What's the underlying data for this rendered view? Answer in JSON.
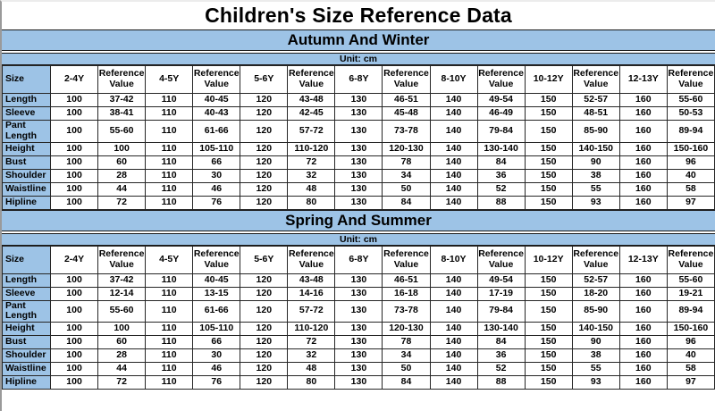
{
  "title": "Children's Size Reference Data",
  "colors": {
    "band_blue": "#9dc3e6",
    "border": "#262626",
    "text": "#000000",
    "background": "#ffffff"
  },
  "sections": [
    {
      "title": "Autumn And Winter",
      "unit_label": "Unit: cm",
      "header": [
        "Size",
        "2-4Y",
        "Reference Value",
        "4-5Y",
        "Reference Value",
        "5-6Y",
        "Reference Value",
        "6-8Y",
        "Reference Value",
        "8-10Y",
        "Reference Value",
        "10-12Y",
        "Reference Value",
        "12-13Y",
        "Reference Value"
      ],
      "rows": [
        {
          "label": "Length",
          "values": [
            "100",
            "37-42",
            "110",
            "40-45",
            "120",
            "43-48",
            "130",
            "46-51",
            "140",
            "49-54",
            "150",
            "52-57",
            "160",
            "55-60"
          ]
        },
        {
          "label": "Sleeve",
          "values": [
            "100",
            "38-41",
            "110",
            "40-43",
            "120",
            "42-45",
            "130",
            "45-48",
            "140",
            "46-49",
            "150",
            "48-51",
            "160",
            "50-53"
          ]
        },
        {
          "label": "Pant Length",
          "values": [
            "100",
            "55-60",
            "110",
            "61-66",
            "120",
            "57-72",
            "130",
            "73-78",
            "140",
            "79-84",
            "150",
            "85-90",
            "160",
            "89-94"
          ]
        },
        {
          "label": "Height",
          "values": [
            "100",
            "100",
            "110",
            "105-110",
            "120",
            "110-120",
            "130",
            "120-130",
            "140",
            "130-140",
            "150",
            "140-150",
            "160",
            "150-160"
          ]
        },
        {
          "label": "Bust",
          "values": [
            "100",
            "60",
            "110",
            "66",
            "120",
            "72",
            "130",
            "78",
            "140",
            "84",
            "150",
            "90",
            "160",
            "96"
          ]
        },
        {
          "label": "Shoulder",
          "values": [
            "100",
            "28",
            "110",
            "30",
            "120",
            "32",
            "130",
            "34",
            "140",
            "36",
            "150",
            "38",
            "160",
            "40"
          ]
        },
        {
          "label": "Waistline",
          "values": [
            "100",
            "44",
            "110",
            "46",
            "120",
            "48",
            "130",
            "50",
            "140",
            "52",
            "150",
            "55",
            "160",
            "58"
          ]
        },
        {
          "label": "Hipline",
          "values": [
            "100",
            "72",
            "110",
            "76",
            "120",
            "80",
            "130",
            "84",
            "140",
            "88",
            "150",
            "93",
            "160",
            "97"
          ]
        }
      ]
    },
    {
      "title": "Spring And Summer",
      "unit_label": "Unit: cm",
      "header": [
        "Size",
        "2-4Y",
        "Reference Value",
        "4-5Y",
        "Reference Value",
        "5-6Y",
        "Reference Value",
        "6-8Y",
        "Reference Value",
        "8-10Y",
        "Reference Value",
        "10-12Y",
        "Reference Value",
        "12-13Y",
        "Reference Value"
      ],
      "rows": [
        {
          "label": "Length",
          "values": [
            "100",
            "37-42",
            "110",
            "40-45",
            "120",
            "43-48",
            "130",
            "46-51",
            "140",
            "49-54",
            "150",
            "52-57",
            "160",
            "55-60"
          ]
        },
        {
          "label": "Sleeve",
          "values": [
            "100",
            "12-14",
            "110",
            "13-15",
            "120",
            "14-16",
            "130",
            "16-18",
            "140",
            "17-19",
            "150",
            "18-20",
            "160",
            "19-21"
          ]
        },
        {
          "label": "Pant Length",
          "values": [
            "100",
            "55-60",
            "110",
            "61-66",
            "120",
            "57-72",
            "130",
            "73-78",
            "140",
            "79-84",
            "150",
            "85-90",
            "160",
            "89-94"
          ]
        },
        {
          "label": "Height",
          "values": [
            "100",
            "100",
            "110",
            "105-110",
            "120",
            "110-120",
            "130",
            "120-130",
            "140",
            "130-140",
            "150",
            "140-150",
            "160",
            "150-160"
          ]
        },
        {
          "label": "Bust",
          "values": [
            "100",
            "60",
            "110",
            "66",
            "120",
            "72",
            "130",
            "78",
            "140",
            "84",
            "150",
            "90",
            "160",
            "96"
          ]
        },
        {
          "label": "Shoulder",
          "values": [
            "100",
            "28",
            "110",
            "30",
            "120",
            "32",
            "130",
            "34",
            "140",
            "36",
            "150",
            "38",
            "160",
            "40"
          ]
        },
        {
          "label": "Waistline",
          "values": [
            "100",
            "44",
            "110",
            "46",
            "120",
            "48",
            "130",
            "50",
            "140",
            "52",
            "150",
            "55",
            "160",
            "58"
          ]
        },
        {
          "label": "Hipline",
          "values": [
            "100",
            "72",
            "110",
            "76",
            "120",
            "80",
            "130",
            "84",
            "140",
            "88",
            "150",
            "93",
            "160",
            "97"
          ]
        }
      ]
    }
  ]
}
